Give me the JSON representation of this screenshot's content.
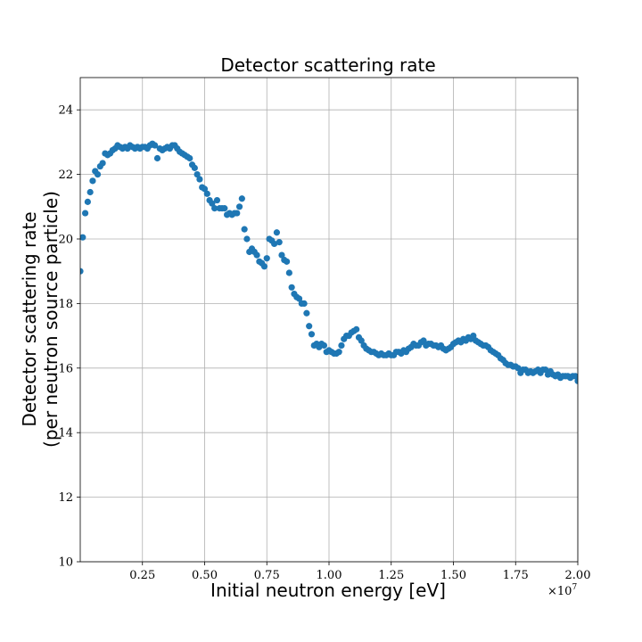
{
  "chart_data": {
    "type": "scatter",
    "title": "Detector scattering rate",
    "xlabel": "Initial neutron energy [eV]",
    "ylabel_line1": "Detector scattering rate",
    "ylabel_line2": "(per neutron source particle)",
    "x_offset_label": "×10",
    "x_offset_exponent": "7",
    "xlim": [
      0.0,
      2.0
    ],
    "ylim": [
      10,
      25
    ],
    "x_scale_note": "x values in units of 1e7 eV",
    "grid": true,
    "marker_color": "#1f77b4",
    "xticks": [
      0.25,
      0.5,
      0.75,
      1.0,
      1.25,
      1.5,
      1.75,
      2.0
    ],
    "xtick_labels": [
      "0.25",
      "0.50",
      "0.75",
      "1.00",
      "1.25",
      "1.50",
      "1.75",
      "2.00"
    ],
    "yticks": [
      10,
      12,
      14,
      16,
      18,
      20,
      22,
      24
    ],
    "ytick_labels": [
      "10",
      "12",
      "14",
      "16",
      "18",
      "20",
      "22",
      "24"
    ],
    "series": [
      {
        "x": [
          0.0,
          0.01,
          0.02,
          0.03,
          0.04,
          0.05,
          0.06,
          0.07,
          0.08,
          0.09,
          0.1,
          0.11,
          0.12,
          0.13,
          0.14,
          0.15,
          0.16,
          0.17,
          0.18,
          0.19,
          0.2,
          0.21,
          0.22,
          0.23,
          0.24,
          0.25,
          0.26,
          0.27,
          0.28,
          0.29,
          0.3,
          0.31,
          0.32,
          0.33,
          0.34,
          0.35,
          0.36,
          0.37,
          0.38,
          0.39,
          0.4,
          0.41,
          0.42,
          0.43,
          0.44,
          0.45,
          0.46,
          0.47,
          0.48,
          0.49,
          0.5,
          0.51,
          0.52,
          0.53,
          0.54,
          0.55,
          0.56,
          0.57,
          0.58,
          0.59,
          0.6,
          0.61,
          0.62,
          0.63,
          0.64,
          0.65,
          0.66,
          0.67,
          0.68,
          0.69,
          0.7,
          0.71,
          0.72,
          0.73,
          0.74,
          0.75,
          0.76,
          0.77,
          0.78,
          0.79,
          0.8,
          0.81,
          0.82,
          0.83,
          0.84,
          0.85,
          0.86,
          0.87,
          0.88,
          0.89,
          0.9,
          0.91,
          0.92,
          0.93,
          0.94,
          0.95,
          0.96,
          0.97,
          0.98,
          0.99,
          1.0,
          1.01,
          1.02,
          1.03,
          1.04,
          1.05,
          1.06,
          1.07,
          1.08,
          1.09,
          1.1,
          1.11,
          1.12,
          1.13,
          1.14,
          1.15,
          1.16,
          1.17,
          1.18,
          1.19,
          1.2,
          1.21,
          1.22,
          1.23,
          1.24,
          1.25,
          1.26,
          1.27,
          1.28,
          1.29,
          1.3,
          1.31,
          1.32,
          1.33,
          1.34,
          1.35,
          1.36,
          1.37,
          1.38,
          1.39,
          1.4,
          1.41,
          1.42,
          1.43,
          1.44,
          1.45,
          1.46,
          1.47,
          1.48,
          1.49,
          1.5,
          1.51,
          1.52,
          1.53,
          1.54,
          1.55,
          1.56,
          1.57,
          1.58,
          1.59,
          1.6,
          1.61,
          1.62,
          1.63,
          1.64,
          1.65,
          1.66,
          1.67,
          1.68,
          1.69,
          1.7,
          1.71,
          1.72,
          1.73,
          1.74,
          1.75,
          1.76,
          1.77,
          1.78,
          1.79,
          1.8,
          1.81,
          1.82,
          1.83,
          1.84,
          1.85,
          1.86,
          1.87,
          1.88,
          1.89,
          1.9,
          1.91,
          1.92,
          1.93,
          1.94,
          1.95,
          1.96,
          1.97,
          1.98,
          1.99,
          2.0
        ],
        "y": [
          19.0,
          20.05,
          20.8,
          21.15,
          21.45,
          21.8,
          22.1,
          22.0,
          22.25,
          22.35,
          22.65,
          22.6,
          22.65,
          22.75,
          22.8,
          22.9,
          22.85,
          22.8,
          22.85,
          22.8,
          22.9,
          22.85,
          22.8,
          22.85,
          22.8,
          22.85,
          22.85,
          22.8,
          22.9,
          22.95,
          22.9,
          22.5,
          22.8,
          22.75,
          22.8,
          22.85,
          22.8,
          22.9,
          22.9,
          22.8,
          22.7,
          22.65,
          22.6,
          22.55,
          22.5,
          22.3,
          22.2,
          22.0,
          21.85,
          21.6,
          21.55,
          21.4,
          21.2,
          21.1,
          20.95,
          21.2,
          20.95,
          20.95,
          20.95,
          20.75,
          20.8,
          20.75,
          20.8,
          20.8,
          21.0,
          21.25,
          20.3,
          20.0,
          19.6,
          19.7,
          19.6,
          19.5,
          19.3,
          19.25,
          19.15,
          19.4,
          20.0,
          19.95,
          19.85,
          20.2,
          19.9,
          19.5,
          19.35,
          19.3,
          18.95,
          18.5,
          18.3,
          18.2,
          18.15,
          18.0,
          18.0,
          17.7,
          17.3,
          17.05,
          16.7,
          16.75,
          16.65,
          16.75,
          16.7,
          16.5,
          16.55,
          16.5,
          16.45,
          16.45,
          16.5,
          16.7,
          16.9,
          17.0,
          17.0,
          17.1,
          17.15,
          17.2,
          16.95,
          16.85,
          16.7,
          16.6,
          16.55,
          16.5,
          16.5,
          16.45,
          16.4,
          16.45,
          16.4,
          16.4,
          16.45,
          16.4,
          16.4,
          16.5,
          16.5,
          16.45,
          16.55,
          16.5,
          16.6,
          16.65,
          16.75,
          16.7,
          16.7,
          16.8,
          16.85,
          16.7,
          16.75,
          16.75,
          16.7,
          16.7,
          16.65,
          16.7,
          16.6,
          16.55,
          16.6,
          16.65,
          16.75,
          16.8,
          16.85,
          16.8,
          16.9,
          16.85,
          16.95,
          16.9,
          17.0,
          16.85,
          16.8,
          16.75,
          16.7,
          16.7,
          16.65,
          16.55,
          16.5,
          16.45,
          16.4,
          16.3,
          16.25,
          16.15,
          16.1,
          16.1,
          16.05,
          16.05,
          16.0,
          15.85,
          15.95,
          15.95,
          15.85,
          15.9,
          15.85,
          15.9,
          15.95,
          15.85,
          15.95,
          15.95,
          15.8,
          15.9,
          15.8,
          15.75,
          15.8,
          15.7,
          15.75,
          15.75,
          15.75,
          15.7,
          15.75,
          15.75,
          15.6
        ]
      }
    ]
  }
}
